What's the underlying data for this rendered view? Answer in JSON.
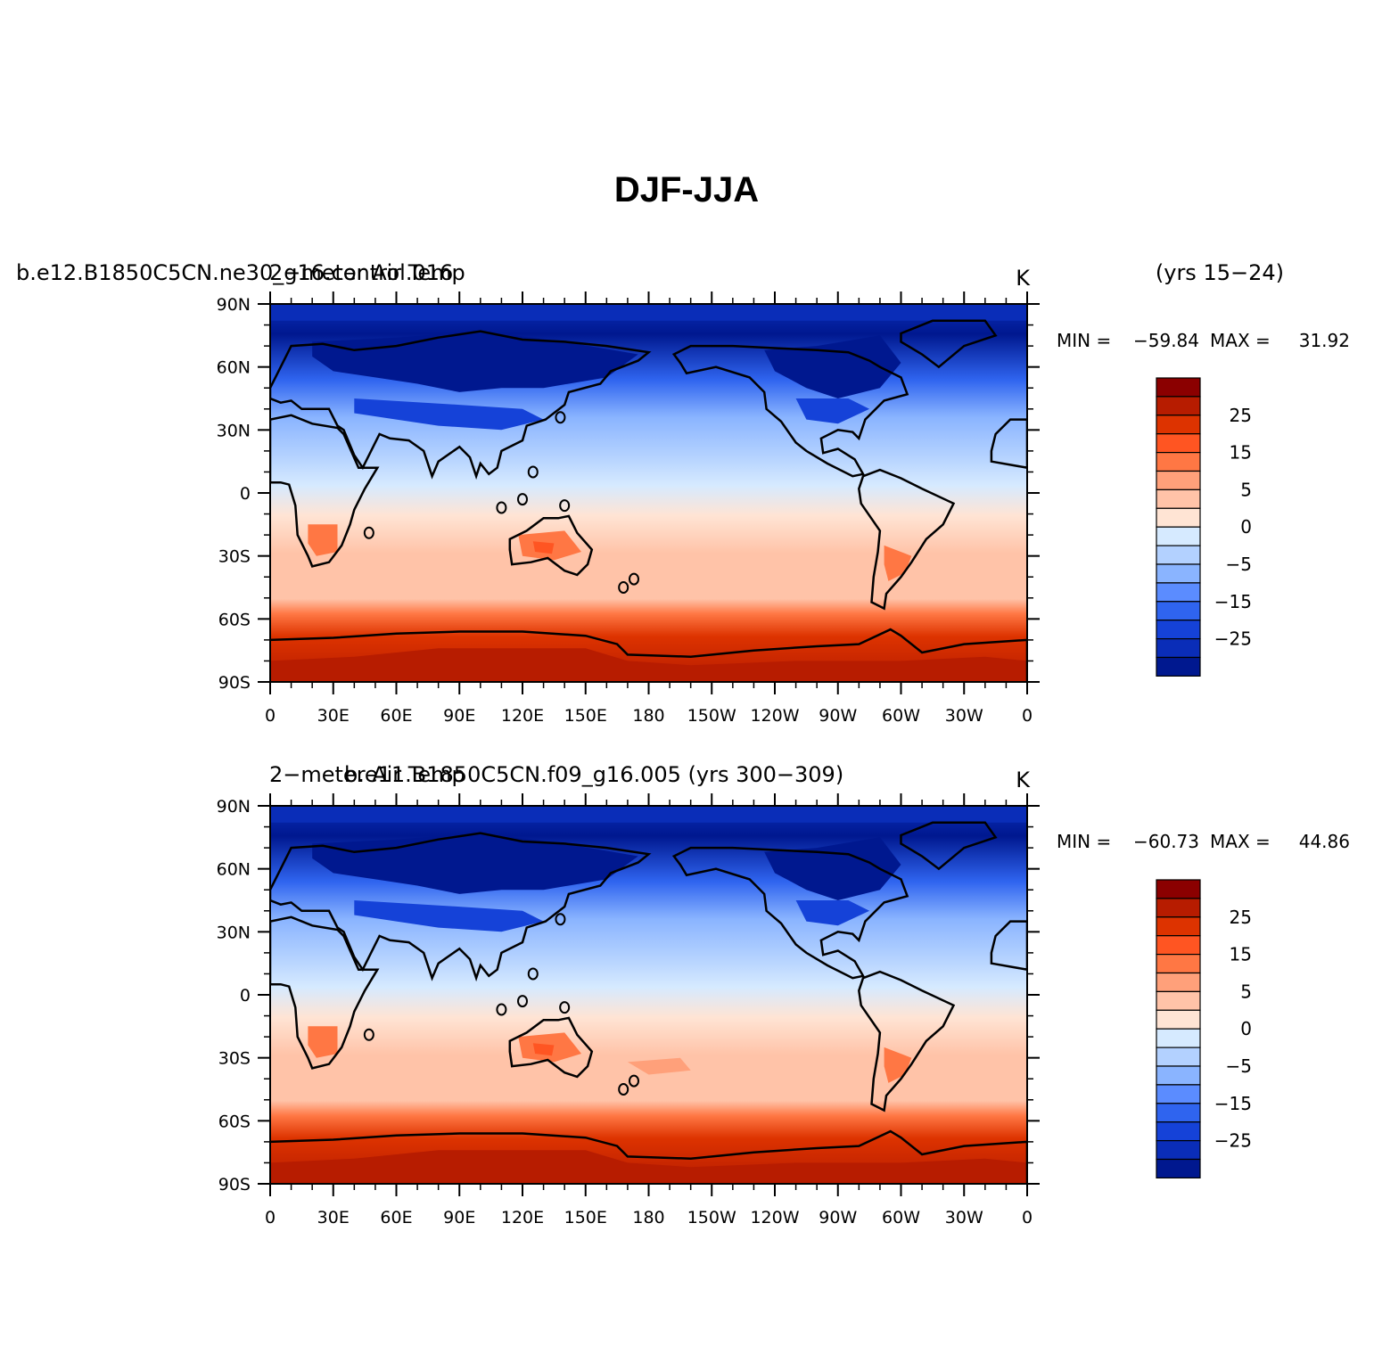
{
  "figure": {
    "title": "DJF-JJA"
  },
  "panels": [
    {
      "left_label_a": "b.e12.B1850C5CN.ne30_g16.control.016",
      "left_label_b": "2-meter Air Temp",
      "right_label": "(yrs 15-24)",
      "units": "K",
      "min_label": "MIN =",
      "min_value": "-59.84",
      "max_label": "MAX =",
      "max_value": "31.92"
    },
    {
      "left_label_a": "2-meter Air Temp",
      "left_label_b": "b.e11.B1850C5CN.f09_g16.005 (yrs 300-309)",
      "right_label": "",
      "units": "K",
      "min_label": "MIN =",
      "min_value": "-60.73",
      "max_label": "MAX =",
      "max_value": "44.86"
    }
  ],
  "axes": {
    "lat_ticks": [
      "90N",
      "60N",
      "30N",
      "0",
      "30S",
      "60S",
      "90S"
    ],
    "lon_ticks": [
      "0",
      "30E",
      "60E",
      "90E",
      "120E",
      "150E",
      "180",
      "150W",
      "120W",
      "90W",
      "60W",
      "30W",
      "0"
    ]
  },
  "colorbar": {
    "labels": [
      "25",
      "15",
      "5",
      "0",
      "-5",
      "-15",
      "-25"
    ],
    "colors": [
      "#8b0000",
      "#b71c00",
      "#dd3300",
      "#ff5522",
      "#ff7744",
      "#ffa07a",
      "#ffc3a8",
      "#ffe4d4",
      "#d6eaff",
      "#b3d1ff",
      "#8ab4ff",
      "#5b8cff",
      "#2f64ef",
      "#1542d8",
      "#0a2db8",
      "#00188f"
    ]
  },
  "chart_data": [
    {
      "type": "filled-contour map",
      "title": "DJF-JJA",
      "variable": "2-meter Air Temp",
      "units": "K",
      "case": "b.e12.B1850C5CN.ne30_g16.control.016",
      "period": "(yrs 15-24)",
      "min": -59.84,
      "max": 31.92,
      "xlim": [
        0,
        360
      ],
      "ylim": [
        -90,
        90
      ],
      "contour_levels": [
        -35,
        -30,
        -25,
        -20,
        -15,
        -10,
        -5,
        -2,
        0,
        2,
        5,
        10,
        15,
        20,
        25,
        30
      ],
      "zonal_profile": [
        {
          "lat": 90,
          "value": -32
        },
        {
          "lat": 75,
          "value": -38
        },
        {
          "lat": 60,
          "value": -25
        },
        {
          "lat": 45,
          "value": -15
        },
        {
          "lat": 30,
          "value": -9
        },
        {
          "lat": 15,
          "value": -3
        },
        {
          "lat": 0,
          "value": 0
        },
        {
          "lat": -15,
          "value": 2
        },
        {
          "lat": -30,
          "value": 4
        },
        {
          "lat": -45,
          "value": 6
        },
        {
          "lat": -60,
          "value": 12
        },
        {
          "lat": -75,
          "value": 25
        },
        {
          "lat": -90,
          "value": 27
        }
      ]
    },
    {
      "type": "filled-contour map",
      "variable": "2-meter Air Temp",
      "units": "K",
      "case": "b.e11.B1850C5CN.f09_g16.005",
      "period": "(yrs 300-309)",
      "min": -60.73,
      "max": 44.86,
      "xlim": [
        0,
        360
      ],
      "ylim": [
        -90,
        90
      ],
      "contour_levels": [
        -35,
        -30,
        -25,
        -20,
        -15,
        -10,
        -5,
        -2,
        0,
        2,
        5,
        10,
        15,
        20,
        25,
        30
      ],
      "zonal_profile": [
        {
          "lat": 90,
          "value": -33
        },
        {
          "lat": 75,
          "value": -39
        },
        {
          "lat": 60,
          "value": -26
        },
        {
          "lat": 45,
          "value": -16
        },
        {
          "lat": 30,
          "value": -9
        },
        {
          "lat": 15,
          "value": -3
        },
        {
          "lat": 0,
          "value": 0
        },
        {
          "lat": -15,
          "value": 2
        },
        {
          "lat": -30,
          "value": 4
        },
        {
          "lat": -45,
          "value": 7
        },
        {
          "lat": -60,
          "value": 13
        },
        {
          "lat": -75,
          "value": 26
        },
        {
          "lat": -90,
          "value": 28
        }
      ]
    }
  ]
}
